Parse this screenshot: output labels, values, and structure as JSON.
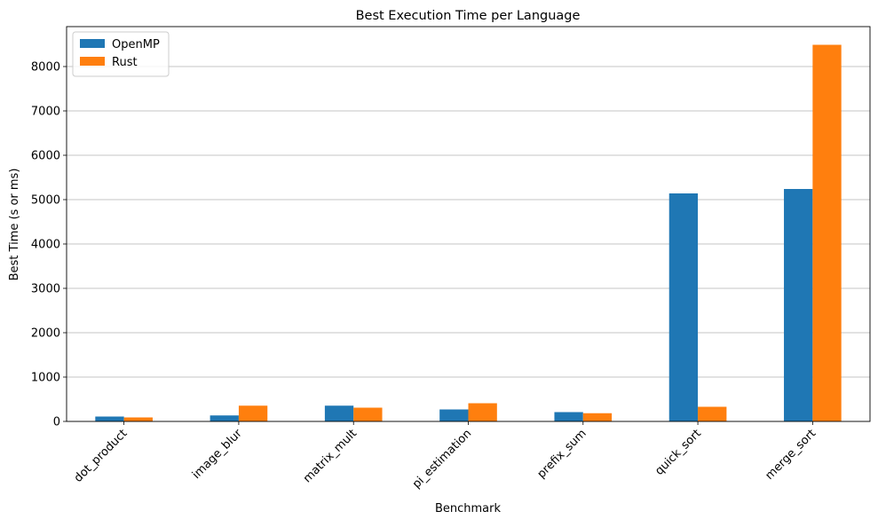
{
  "chart_data": {
    "type": "bar",
    "title": "Best Execution Time per Language",
    "xlabel": "Benchmark",
    "ylabel": "Best Time (s or ms)",
    "categories": [
      "dot_product",
      "image_blur",
      "matrix_mult",
      "pi_estimation",
      "prefix_sum",
      "quick_sort",
      "merge_sort"
    ],
    "series": [
      {
        "name": "OpenMP",
        "color": "#1f77b4",
        "values": [
          110,
          135,
          355,
          270,
          210,
          5140,
          5240
        ]
      },
      {
        "name": "Rust",
        "color": "#ff7f0e",
        "values": [
          90,
          355,
          310,
          410,
          185,
          330,
          8490
        ]
      }
    ],
    "ylim": [
      0,
      8900
    ],
    "yticks": [
      0,
      1000,
      2000,
      3000,
      4000,
      5000,
      6000,
      7000,
      8000
    ],
    "grid": "horizontal",
    "legend_position": "top-left"
  }
}
